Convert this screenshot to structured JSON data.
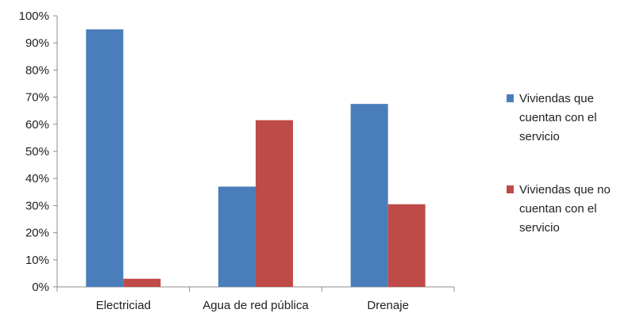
{
  "chart_data": {
    "type": "bar",
    "categories": [
      "Electriciad",
      "Agua de red pública",
      "Drenaje"
    ],
    "series": [
      {
        "name": "Viviendas que cuentan con el servicio",
        "legend_lines": [
          "Viviendas que",
          "cuentan con el",
          "servicio"
        ],
        "color": "#4a7ebb",
        "values": [
          95,
          37,
          67.5
        ]
      },
      {
        "name": "Viviendas que no cuentan con el servicio",
        "legend_lines": [
          "Viviendas que no",
          "cuentan con el",
          "servicio"
        ],
        "color": "#be4b48",
        "values": [
          3,
          61.5,
          30.5
        ]
      }
    ],
    "ylim": [
      0,
      100
    ],
    "yticks": [
      "0%",
      "10%",
      "20%",
      "30%",
      "40%",
      "50%",
      "60%",
      "70%",
      "80%",
      "90%",
      "100%"
    ],
    "grid": false,
    "legend_position": "right",
    "title": "",
    "xlabel": "",
    "ylabel": ""
  }
}
